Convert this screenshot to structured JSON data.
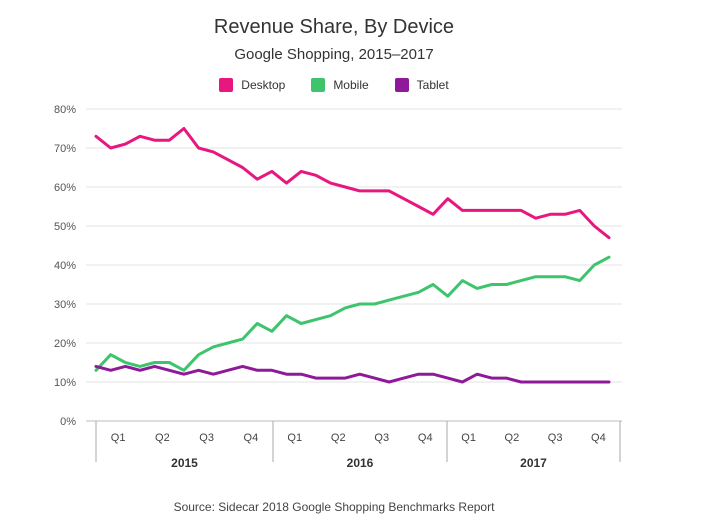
{
  "chart_data": {
    "type": "line",
    "title": "Revenue Share, By Device",
    "subtitle": "Google Shopping, 2015–2017",
    "source": "Source: Sidecar 2018 Google Shopping Benchmarks Report",
    "ylim": [
      0,
      80
    ],
    "yticks": [
      "0%",
      "10%",
      "20%",
      "30%",
      "40%",
      "50%",
      "60%",
      "70%",
      "80%"
    ],
    "grid": true,
    "legend_position": "top-center",
    "quarters": [
      "Q1",
      "Q2",
      "Q3",
      "Q4",
      "Q1",
      "Q2",
      "Q3",
      "Q4",
      "Q1",
      "Q2",
      "Q3",
      "Q4"
    ],
    "years": [
      "2015",
      "2016",
      "2017"
    ],
    "series": [
      {
        "name": "Desktop",
        "color": "#e8177f",
        "values": [
          73,
          70,
          71,
          73,
          72,
          72,
          75,
          70,
          69,
          67,
          65,
          62,
          64,
          61,
          64,
          63,
          61,
          60,
          59,
          59,
          59,
          57,
          55,
          53,
          57,
          54,
          54,
          54,
          54,
          54,
          52,
          53,
          53,
          54,
          50,
          47
        ]
      },
      {
        "name": "Mobile",
        "color": "#3ec46d",
        "values": [
          13,
          17,
          15,
          14,
          15,
          15,
          13,
          17,
          19,
          20,
          21,
          25,
          23,
          27,
          25,
          26,
          27,
          29,
          30,
          30,
          31,
          32,
          33,
          35,
          32,
          36,
          34,
          35,
          35,
          36,
          37,
          37,
          37,
          36,
          40,
          42
        ]
      },
      {
        "name": "Tablet",
        "color": "#8e1a99",
        "values": [
          14,
          13,
          14,
          13,
          14,
          13,
          12,
          13,
          12,
          13,
          14,
          13,
          13,
          12,
          12,
          11,
          11,
          11,
          12,
          11,
          10,
          11,
          12,
          12,
          11,
          10,
          12,
          11,
          11,
          10,
          10,
          10,
          10,
          10,
          10,
          10
        ]
      }
    ]
  }
}
